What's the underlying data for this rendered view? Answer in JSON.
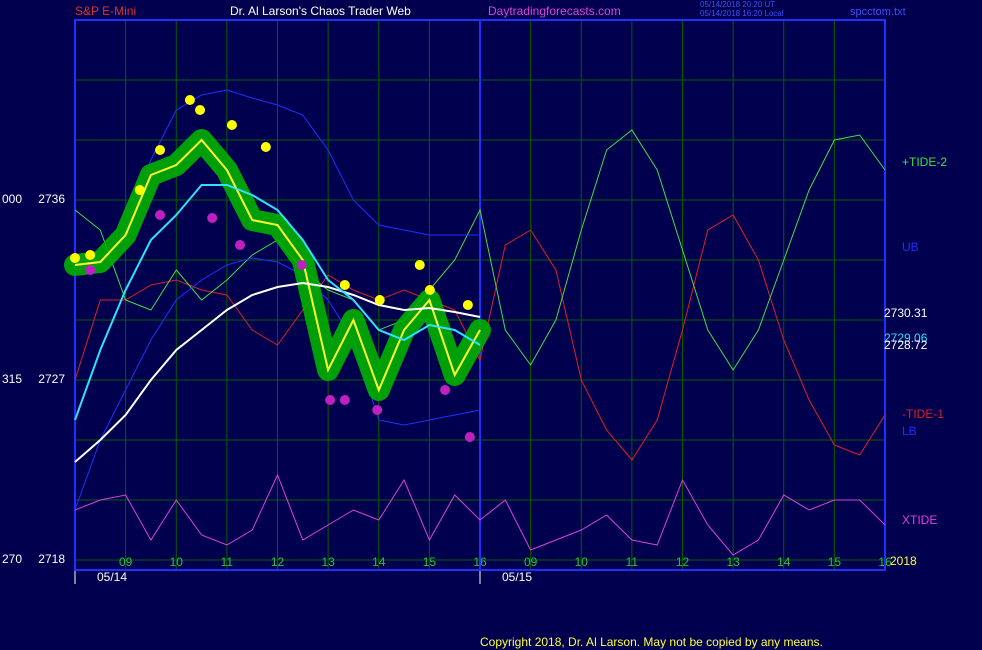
{
  "chart_data": {
    "type": "line",
    "instrument": "S&P E-Mini",
    "title": "Dr. Al Larson's Chaos Trader Web",
    "website": "Daytradingforecasts.com",
    "timestamps": [
      "05/14/2018 20:20 UT",
      "05/14/2018 16:20 Local"
    ],
    "file": "spcctom.txt",
    "copyright": "Copyright 2018, Dr. Al Larson. May not be copied by any means.",
    "year_label": "2018",
    "xlim": [
      0,
      16
    ],
    "ylim": [
      2717.5,
      2745
    ],
    "yticks": [
      2718,
      2727,
      2736
    ],
    "left_labels": [
      "270",
      "315",
      "000"
    ],
    "ygrid": [
      2718,
      2721,
      2724,
      2727,
      2730,
      2733,
      2736,
      2739,
      2742
    ],
    "xticks": [
      {
        "value": 1,
        "label": "09"
      },
      {
        "value": 2,
        "label": "10"
      },
      {
        "value": 3,
        "label": "11"
      },
      {
        "value": 4,
        "label": "12"
      },
      {
        "value": 5,
        "label": "13"
      },
      {
        "value": 6,
        "label": "14"
      },
      {
        "value": 7,
        "label": "15"
      },
      {
        "value": 8,
        "label": "16"
      },
      {
        "value": 9,
        "label": "09"
      },
      {
        "value": 10,
        "label": "10"
      },
      {
        "value": 11,
        "label": "11"
      },
      {
        "value": 12,
        "label": "12"
      },
      {
        "value": 13,
        "label": "13"
      },
      {
        "value": 14,
        "label": "14"
      },
      {
        "value": 15,
        "label": "15"
      },
      {
        "value": 16,
        "label": "16"
      }
    ],
    "dates": [
      {
        "value": 0,
        "label": "05/14"
      },
      {
        "value": 8,
        "label": "05/15"
      }
    ],
    "now_line": 8,
    "grid": true,
    "series": [
      {
        "color": "#ffff30",
        "glow": "#00b000",
        "x": [
          0,
          0.5,
          1,
          1.5,
          2,
          2.5,
          3,
          3.5,
          4,
          4.5,
          5,
          5.5,
          6,
          6.5,
          7,
          7.5,
          8
        ],
        "values": [
          2732.75,
          2732.9,
          2734.25,
          2737.25,
          2737.75,
          2739,
          2737.5,
          2735,
          2734.75,
          2733,
          2727.5,
          2730,
          2726.5,
          2729.5,
          2731,
          2727.25,
          2729.5
        ]
      },
      {
        "color": "#30e0ff",
        "x": [
          0,
          0.5,
          1,
          1.5,
          2,
          2.5,
          3,
          3.5,
          4,
          4.5,
          5,
          5.5,
          6,
          6.5,
          7,
          7.5,
          8
        ],
        "values": [
          2725,
          2728.5,
          2731.5,
          2734,
          2735.25,
          2736.75,
          2736.75,
          2736.25,
          2735.5,
          2734,
          2732,
          2731,
          2729.5,
          2729,
          2729.75,
          2729.5,
          2728.75
        ]
      },
      {
        "color": "#ffffff",
        "x": [
          0,
          0.5,
          1,
          1.5,
          2,
          2.5,
          3,
          3.5,
          4,
          4.5,
          5,
          5.5,
          6,
          6.5,
          7,
          7.5,
          8
        ],
        "values": [
          2722.9,
          2724,
          2725.25,
          2727,
          2728.5,
          2729.5,
          2730.5,
          2731.25,
          2731.65,
          2731.85,
          2731.65,
          2731.25,
          2730.75,
          2730.5,
          2730.6,
          2730.4,
          2730.15
        ]
      },
      {
        "name": "UB",
        "color": "#2030ff",
        "x": [
          0,
          0.5,
          1,
          1.5,
          2,
          2.5,
          3,
          3.5,
          4,
          4.5,
          5,
          5.5,
          6,
          6.5,
          7,
          7.5,
          8
        ],
        "values": [
          2732.5,
          2732.75,
          2734.5,
          2738,
          2740.5,
          2741.25,
          2741.5,
          2741.1,
          2740.75,
          2740.25,
          2738.5,
          2736,
          2734.75,
          2734.5,
          2734.25,
          2734.25,
          2734.25
        ]
      },
      {
        "name": "LB",
        "color": "#2030ff",
        "x": [
          0,
          0.5,
          1,
          1.5,
          2,
          2.5,
          3,
          3.5,
          4,
          4.5,
          5,
          5.5,
          6,
          6.5,
          7,
          7.5,
          8
        ],
        "values": [
          2720.5,
          2724,
          2726.5,
          2729,
          2731,
          2732,
          2732.75,
          2733.1,
          2732.9,
          2732.25,
          2731,
          2729,
          2725,
          2724.75,
          2725,
          2725.25,
          2725.5
        ]
      },
      {
        "name": "-TIDE-1",
        "color": "#e02020",
        "x": [
          0,
          0.5,
          1,
          1.5,
          2,
          2.5,
          3,
          3.5,
          4,
          4.5,
          5,
          5.5,
          6,
          6.5,
          7,
          7.5,
          8,
          8.5,
          9,
          9.5,
          10,
          10.5,
          11,
          11.5,
          12,
          12.5,
          13,
          13.5,
          14,
          14.5,
          15,
          15.5,
          16
        ],
        "values": [
          2727,
          2731,
          2731,
          2731.75,
          2732,
          2731.5,
          2731.25,
          2729.5,
          2728.75,
          2730.5,
          2732.25,
          2731.5,
          2731,
          2731.5,
          2731,
          2730.5,
          2728,
          2733.75,
          2734.5,
          2732.5,
          2727,
          2724.5,
          2723,
          2725,
          2729.5,
          2734.5,
          2735.25,
          2733,
          2729,
          2726,
          2723.75,
          2723.25,
          2725.25
        ]
      },
      {
        "name": "+TIDE-2",
        "color": "#40e040",
        "x": [
          0,
          0.5,
          1,
          1.5,
          2,
          2.5,
          3,
          3.5,
          4,
          4.5,
          5,
          5.5,
          6,
          6.5,
          7,
          7.5,
          8,
          8.5,
          9,
          9.5,
          10,
          10.5,
          11,
          11.5,
          12,
          12.5,
          13,
          13.5,
          14,
          14.5,
          15,
          15.5,
          16
        ],
        "values": [
          2735.5,
          2734.5,
          2731,
          2730.5,
          2732.5,
          2731,
          2732,
          2733.25,
          2734,
          2732.5,
          2731.5,
          2731,
          2729.5,
          2730,
          2731.5,
          2733,
          2735.5,
          2729.5,
          2727.75,
          2730,
          2734.5,
          2738.5,
          2739.5,
          2737.5,
          2733.5,
          2729.5,
          2727.5,
          2729.5,
          2733,
          2736.5,
          2739,
          2739.25,
          2737.5
        ]
      },
      {
        "name": "XTIDE",
        "color": "#e040e0",
        "x": [
          0,
          0.5,
          1,
          1.5,
          2,
          2.5,
          3,
          3.5,
          4,
          4.5,
          5,
          5.5,
          6,
          6.5,
          7,
          7.5,
          8,
          8.5,
          9,
          9.5,
          10,
          10.5,
          11,
          11.5,
          12,
          12.5,
          13,
          13.5,
          14,
          14.5,
          15,
          15.5,
          16
        ],
        "values": [
          2720.5,
          2721,
          2721.25,
          2719,
          2721,
          2719.25,
          2718.75,
          2719.5,
          2722.25,
          2719,
          2719.75,
          2720.5,
          2720,
          2722,
          2719,
          2721.25,
          2720,
          2721,
          2718.5,
          2719,
          2719.5,
          2720.25,
          2719,
          2718.75,
          2722,
          2719.75,
          2718.25,
          2719,
          2721.25,
          2720.5,
          2721,
          2721,
          2719.75
        ]
      }
    ],
    "high_markers": {
      "color": "#ffff00",
      "x": [
        0,
        0.3,
        1.28,
        1.68,
        2.27,
        2.47,
        3.1,
        3.77,
        5.33,
        6.02,
        6.81,
        7.01,
        7.76
      ],
      "values": [
        2733.1,
        2733.25,
        2736.5,
        2738.5,
        2741,
        2740.5,
        2739.75,
        2738.65,
        2731.75,
        2731,
        2732.75,
        2731.5,
        2730.75
      ]
    },
    "low_markers": {
      "color": "#c020c0",
      "x": [
        0.3,
        1.68,
        2.71,
        3.26,
        4.48,
        5.04,
        5.33,
        5.97,
        7.31,
        7.8
      ],
      "values": [
        2732.5,
        2735.25,
        2735.1,
        2733.75,
        2732.75,
        2726,
        2726,
        2725.5,
        2726.5,
        2724.15
      ]
    },
    "end_labels": [
      {
        "value": 2730.31,
        "label": "2730.31",
        "color": "#ffffff"
      },
      {
        "value": 2729.06,
        "label": "2729.06",
        "color": "#30e0ff"
      },
      {
        "value": 2728.72,
        "label": "2728.72",
        "color": "#ffffff"
      }
    ]
  }
}
